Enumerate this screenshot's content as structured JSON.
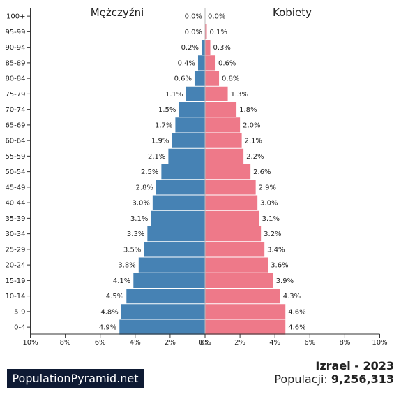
{
  "chart_data": {
    "type": "bar",
    "orientation": "horizontal-pyramid",
    "left_title": "Mężczyźni",
    "right_title": "Kobiety",
    "categories": [
      "100+",
      "95-99",
      "90-94",
      "85-89",
      "80-84",
      "75-79",
      "70-74",
      "65-69",
      "60-64",
      "55-59",
      "50-54",
      "45-49",
      "40-44",
      "35-39",
      "30-34",
      "25-29",
      "20-24",
      "15-19",
      "10-14",
      "5-9",
      "0-4"
    ],
    "series": [
      {
        "name": "Mężczyźni",
        "color": "#4682b4",
        "values": [
          0.0,
          0.0,
          0.2,
          0.4,
          0.6,
          1.1,
          1.5,
          1.7,
          1.9,
          2.1,
          2.5,
          2.8,
          3.0,
          3.1,
          3.3,
          3.5,
          3.8,
          4.1,
          4.5,
          4.8,
          4.9
        ],
        "labels": [
          "0.0%",
          "0.0%",
          "0.2%",
          "0.4%",
          "0.6%",
          "1.1%",
          "1.5%",
          "1.7%",
          "1.9%",
          "2.1%",
          "2.5%",
          "2.8%",
          "3.0%",
          "3.1%",
          "3.3%",
          "3.5%",
          "3.8%",
          "4.1%",
          "4.5%",
          "4.8%",
          "4.9%"
        ]
      },
      {
        "name": "Kobiety",
        "color": "#ee7989",
        "values": [
          0.0,
          0.1,
          0.3,
          0.6,
          0.8,
          1.3,
          1.8,
          2.0,
          2.1,
          2.2,
          2.6,
          2.9,
          3.0,
          3.1,
          3.2,
          3.4,
          3.6,
          3.9,
          4.3,
          4.6,
          4.6
        ],
        "labels": [
          "0.0%",
          "0.1%",
          "0.3%",
          "0.6%",
          "0.8%",
          "1.3%",
          "1.8%",
          "2.0%",
          "2.1%",
          "2.2%",
          "2.6%",
          "2.9%",
          "3.0%",
          "3.1%",
          "3.2%",
          "3.4%",
          "3.6%",
          "3.9%",
          "4.3%",
          "4.6%",
          "4.6%"
        ]
      }
    ],
    "xlim": [
      -10,
      10
    ],
    "x_tick_labels": [
      "10%",
      "8%",
      "6%",
      "4%",
      "2%",
      "0%",
      "0%",
      "2%",
      "4%",
      "6%",
      "8%",
      "10%"
    ],
    "grid": false
  },
  "footer": {
    "brand": "PopulationPyramid.net",
    "country_year": "Izrael - 2023",
    "population_label": "Populacji:",
    "population_value": "9,256,313"
  }
}
